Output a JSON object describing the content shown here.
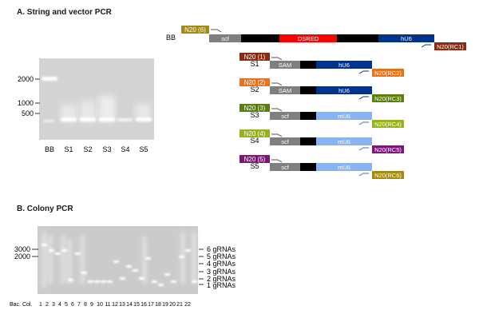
{
  "panel_a": {
    "title": "A. String and vector PCR",
    "gel": {
      "ladder": [
        "2000",
        "1000",
        "500"
      ],
      "lanes": [
        "BB",
        "S1",
        "S2",
        "S3",
        "S4",
        "S5"
      ]
    },
    "constructs": [
      {
        "label": "BB",
        "primer_f": "N20 (6)",
        "primer_f_color": "#a38a10",
        "segments": [
          "scf",
          "",
          "DSRED",
          "",
          "hU6"
        ],
        "primer_r": "N20(RC1)",
        "primer_r_color": "#8a2a10"
      },
      {
        "label": "S1",
        "primer_f": "N20 (1)",
        "primer_f_color": "#8a2a10",
        "segments": [
          "SAM",
          "hU6"
        ],
        "primer_r": "N20(RC2)",
        "primer_r_color": "#e8731a"
      },
      {
        "label": "S2",
        "primer_f": "N20 (2)",
        "primer_f_color": "#e8731a",
        "segments": [
          "SAM",
          "hU6"
        ],
        "primer_r": "N20(RC3)",
        "primer_r_color": "#5a7d10"
      },
      {
        "label": "S3",
        "primer_f": "N20 (3)",
        "primer_f_color": "#5a7d10",
        "segments": [
          "scf",
          "mU6"
        ],
        "primer_r": "N20(RC4)",
        "primer_r_color": "#96b31c"
      },
      {
        "label": "S4",
        "primer_f": "N20 (4)",
        "primer_f_color": "#96b31c",
        "segments": [
          "scf",
          "mU6"
        ],
        "primer_r": "N20(RC5)",
        "primer_r_color": "#7a1878"
      },
      {
        "label": "S5",
        "primer_f": "N20 (5)",
        "primer_f_color": "#7a1878",
        "segments": [
          "scf",
          "mU6"
        ],
        "primer_r": "N20(RC6)",
        "primer_r_color": "#a38a10"
      }
    ]
  },
  "panel_b": {
    "title": "B. Colony PCR",
    "gel": {
      "ladder": [
        "3000",
        "2000"
      ],
      "lane_prefix": "Bac. Col.",
      "lanes": [
        "1",
        "2",
        "3",
        "4",
        "5",
        "6",
        "7",
        "8",
        "9",
        "10",
        "11",
        "12",
        "13",
        "14",
        "15",
        "16",
        "17",
        "18",
        "19",
        "20",
        "21",
        "22"
      ],
      "grna_labels": [
        "6 gRNAs",
        "5 gRNAs",
        "4 gRNAs",
        "3 gRNAs",
        "2 gRNAs",
        "1 gRNAs"
      ]
    }
  },
  "colors": {
    "scf": "#7f7f7f",
    "black": "#000000",
    "dsred": "#ff0000",
    "hu6": "#00338a",
    "mu6": "#8ab4f0"
  }
}
